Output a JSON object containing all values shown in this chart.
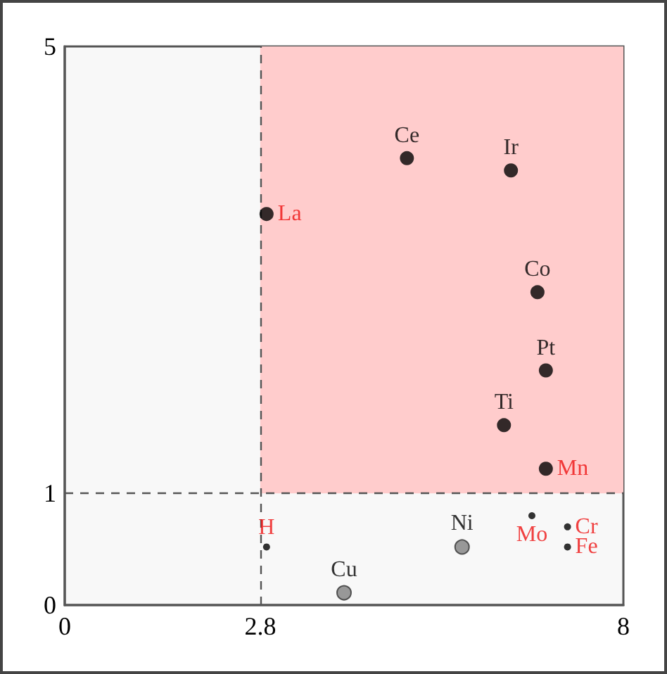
{
  "chart_data": {
    "type": "scatter",
    "series": [
      {
        "color": "#000000",
        "x": [
          4.9,
          6.39,
          6.77,
          6.89,
          6.29
        ],
        "values": [
          4.0,
          3.89,
          2.8,
          2.1,
          1.61
        ],
        "value_labels": [
          "Ce",
          "Ir",
          "Co",
          "Pt",
          "Ti"
        ]
      },
      {
        "color": "#000000",
        "x": [
          2.89,
          6.89
        ],
        "values": [
          3.5,
          1.22
        ],
        "value_labels": [
          "La",
          "Mn"
        ]
      },
      {
        "color": "#000000",
        "x": [
          2.89,
          6.69,
          7.2,
          7.2
        ],
        "values": [
          0.52,
          0.8,
          0.7,
          0.52
        ],
        "value_labels": [
          "H",
          "Mo",
          "Cr",
          "Fe"
        ]
      },
      {
        "color": "#808080",
        "x": [
          5.69,
          4.0
        ],
        "values": [
          0.52,
          0.11
        ],
        "value_labels": [
          "Ni",
          "Cu"
        ]
      }
    ],
    "xlim": [
      0,
      8
    ],
    "ylim": [
      0,
      5
    ],
    "xticks": [
      0,
      2.8,
      8
    ],
    "yticks": [
      0,
      1,
      5
    ],
    "ref_lines": [
      {
        "axis": "x",
        "value": 2.8,
        "line_style": "dashed",
        "color": "#555555"
      },
      {
        "axis": "y",
        "value": 1,
        "line_style": "dashed",
        "color": "#555555"
      }
    ],
    "bands": [
      {
        "axis": "x",
        "from": 2.8,
        "to": 8,
        "color": "#ffcccc"
      }
    ],
    "marker": "circle",
    "grid": false
  }
}
